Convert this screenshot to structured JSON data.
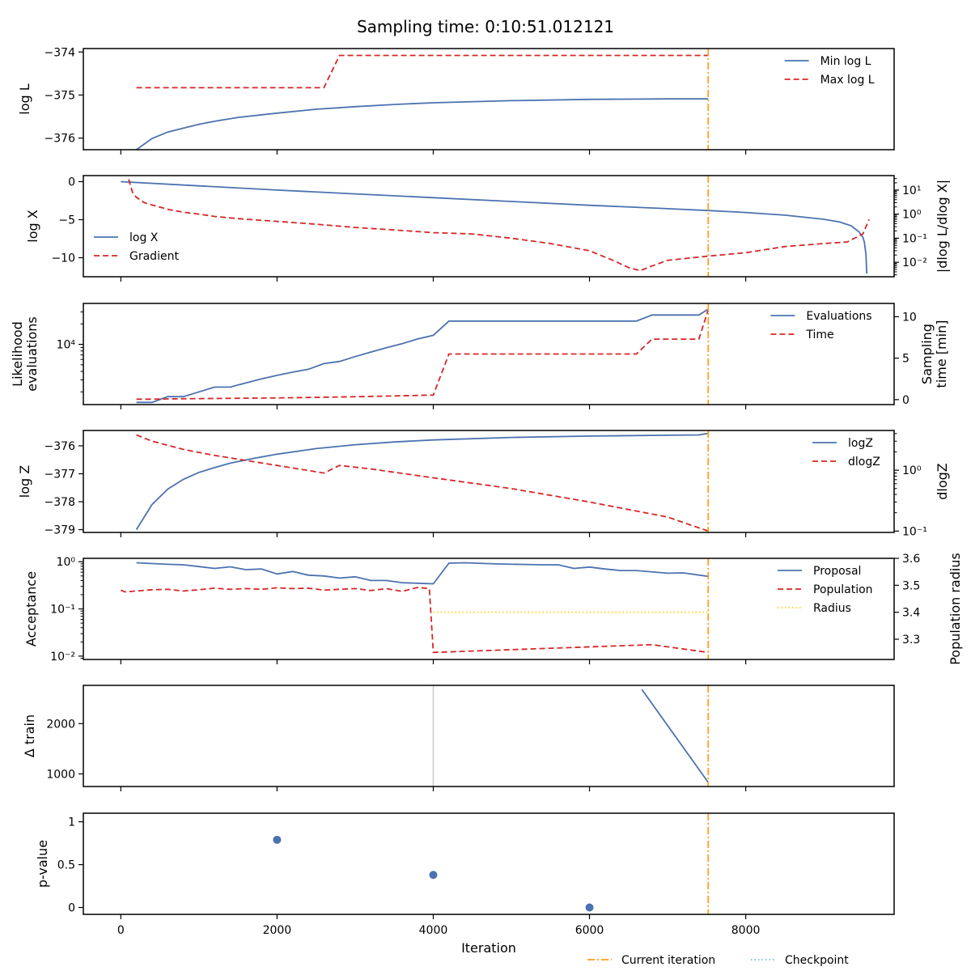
{
  "title": "Sampling time: 0:10:51.012121",
  "xlabel": "Iteration",
  "x_ticks": [
    0,
    2000,
    4000,
    6000,
    8000
  ],
  "xlim": [
    -480,
    9900
  ],
  "current_iteration": 7520,
  "figure_legend": [
    "Current iteration",
    "Checkpoint"
  ],
  "colors": {
    "blue": "#4c72b0",
    "red": "#d62728",
    "orange": "#ff9f1c",
    "yellow": "#ffd21f",
    "checkpoint": "#66c2cc",
    "gray": "#cccccc"
  },
  "chart_data": [
    {
      "type": "line",
      "ylabel": "log L",
      "ylim": [
        -376.27,
        -373.92
      ],
      "yticks": [
        -376,
        -375,
        -374
      ],
      "legend": "top-right",
      "series": [
        {
          "name": "Min log L",
          "color": "blue",
          "style": "solid",
          "x": [
            200,
            400,
            600,
            800,
            1000,
            1200,
            1500,
            2000,
            2500,
            3000,
            3500,
            4000,
            5000,
            6000,
            7000,
            7520
          ],
          "y": [
            -376.27,
            -376.01,
            -375.86,
            -375.77,
            -375.68,
            -375.61,
            -375.52,
            -375.42,
            -375.33,
            -375.27,
            -375.22,
            -375.18,
            -375.13,
            -375.1,
            -375.09,
            -375.09
          ]
        },
        {
          "name": "Max log L",
          "color": "red",
          "style": "dashed",
          "x": [
            200,
            2600,
            2800,
            7520
          ],
          "y": [
            -374.83,
            -374.83,
            -374.08,
            -374.08
          ]
        }
      ]
    },
    {
      "type": "line",
      "ylabel": "log X",
      "ylim": [
        -12.5,
        0.8
      ],
      "yticks": [
        0,
        -5,
        -10
      ],
      "y2label": "|dlog L/dlog X|",
      "y2scale": "log",
      "y2lim": [
        0.0025,
        40
      ],
      "y2ticks": [
        0.01,
        0.1,
        1,
        10
      ],
      "y2ticklabels": [
        "10⁻²",
        "10⁻¹",
        "10⁰",
        "10¹"
      ],
      "legend": "lower-left",
      "series": [
        {
          "name": "log X",
          "color": "blue",
          "style": "solid",
          "axis": "left",
          "x": [
            0,
            1000,
            2000,
            3000,
            4000,
            5000,
            6000,
            7000,
            7520,
            8000,
            8500,
            9000,
            9200,
            9350,
            9450,
            9500,
            9520,
            9540,
            9550
          ],
          "y": [
            0,
            -0.55,
            -1.1,
            -1.6,
            -2.1,
            -2.6,
            -3.1,
            -3.55,
            -3.8,
            -4.05,
            -4.4,
            -4.95,
            -5.3,
            -5.8,
            -6.6,
            -7.3,
            -8.0,
            -9.6,
            -12.1
          ]
        },
        {
          "name": "Gradient",
          "color": "red",
          "style": "dashed",
          "axis": "right",
          "x": [
            100,
            150,
            200,
            300,
            400,
            600,
            800,
            1000,
            1200,
            1500,
            2000,
            2500,
            3000,
            3500,
            4000,
            4500,
            5000,
            5500,
            6000,
            6300,
            6500,
            6650,
            6800,
            7000,
            7520,
            8000,
            8500,
            9000,
            9300,
            9500,
            9580
          ],
          "y": [
            28,
            8,
            5,
            3,
            2.4,
            1.6,
            1.2,
            1.0,
            0.8,
            0.65,
            0.5,
            0.38,
            0.28,
            0.22,
            0.17,
            0.15,
            0.1,
            0.06,
            0.03,
            0.012,
            0.006,
            0.0045,
            0.007,
            0.012,
            0.018,
            0.025,
            0.045,
            0.06,
            0.07,
            0.15,
            0.6
          ]
        }
      ]
    },
    {
      "type": "line",
      "ylabel": "Likelihood evaluations",
      "yscale": "log",
      "ylim": [
        1300,
        40000
      ],
      "yticks": [
        10000
      ],
      "yticklabels": [
        "10⁴"
      ],
      "y2label": "Sampling time [min]",
      "y2lim": [
        -0.6,
        11.6
      ],
      "y2ticks": [
        0,
        5,
        10
      ],
      "legend": "top-right",
      "series": [
        {
          "name": "Evaluations",
          "color": "blue",
          "style": "solid",
          "axis": "left",
          "x": [
            200,
            400,
            600,
            800,
            1000,
            1200,
            1400,
            1600,
            1800,
            2000,
            2200,
            2400,
            2600,
            2800,
            3000,
            3200,
            3400,
            3600,
            3800,
            4000,
            4200,
            4400,
            6600,
            6800,
            7000,
            7400,
            7520
          ],
          "y": [
            1400,
            1400,
            1700,
            1700,
            2000,
            2350,
            2350,
            2700,
            3100,
            3500,
            3900,
            4300,
            5200,
            5600,
            6600,
            7700,
            8900,
            10200,
            12000,
            13600,
            22000,
            22000,
            22000,
            27000,
            27000,
            27000,
            33000
          ]
        },
        {
          "name": "Time",
          "color": "red",
          "style": "dashed",
          "axis": "right",
          "x": [
            200,
            400,
            600,
            1000,
            2000,
            3000,
            3800,
            4000,
            4200,
            5000,
            6000,
            6600,
            6800,
            7400,
            7520
          ],
          "y": [
            0.05,
            0.05,
            0.08,
            0.12,
            0.2,
            0.35,
            0.5,
            0.55,
            5.5,
            5.5,
            5.5,
            5.5,
            7.3,
            7.3,
            10.85
          ]
        }
      ]
    },
    {
      "type": "line",
      "ylabel": "log Z",
      "ylim": [
        -379.1,
        -375.45
      ],
      "yticks": [
        -376,
        -377,
        -378,
        -379
      ],
      "y2label": "dlogZ",
      "y2scale": "log",
      "y2lim": [
        0.095,
        4.5
      ],
      "y2ticks": [
        0.1,
        1
      ],
      "y2ticklabels": [
        "10⁻¹",
        "10⁰"
      ],
      "legend": "top-right",
      "series": [
        {
          "name": "logZ",
          "color": "blue",
          "style": "solid",
          "axis": "left",
          "x": [
            200,
            400,
            600,
            800,
            1000,
            1200,
            1400,
            1700,
            2000,
            2500,
            3000,
            3500,
            4000,
            5000,
            6000,
            7000,
            7400,
            7520
          ],
          "y": [
            -379.0,
            -378.1,
            -377.55,
            -377.2,
            -376.95,
            -376.78,
            -376.62,
            -376.45,
            -376.3,
            -376.1,
            -375.96,
            -375.86,
            -375.79,
            -375.7,
            -375.65,
            -375.62,
            -375.61,
            -375.55
          ]
        },
        {
          "name": "dlogZ",
          "color": "red",
          "style": "dashed",
          "axis": "right",
          "x": [
            200,
            400,
            800,
            1200,
            1600,
            2000,
            2600,
            2800,
            3200,
            4000,
            5000,
            6000,
            7000,
            7520
          ],
          "y": [
            3.8,
            3.0,
            2.2,
            1.75,
            1.45,
            1.2,
            0.9,
            1.2,
            1.05,
            0.75,
            0.5,
            0.3,
            0.17,
            0.1
          ]
        }
      ]
    },
    {
      "type": "line",
      "ylabel": "Acceptance",
      "yscale": "log",
      "ylim": [
        0.0085,
        1.18
      ],
      "yticks": [
        0.01,
        0.1,
        1
      ],
      "yticklabels": [
        "10⁻²",
        "10⁻¹",
        "10⁰"
      ],
      "y2label": "Population radius",
      "y2lim": [
        3.225,
        3.6
      ],
      "y2ticks": [
        3.3,
        3.4,
        3.5,
        3.6
      ],
      "legend": "top-right",
      "series": [
        {
          "name": "Proposal",
          "color": "blue",
          "style": "solid",
          "axis": "left",
          "x": [
            200,
            600,
            800,
            1000,
            1200,
            1400,
            1600,
            1800,
            2000,
            2200,
            2400,
            2600,
            2800,
            3000,
            3200,
            3400,
            3600,
            3800,
            4000,
            4200,
            4400,
            4800,
            5400,
            5600,
            5800,
            6000,
            6200,
            6400,
            6600,
            7000,
            7200,
            7520
          ],
          "y": [
            0.95,
            0.88,
            0.86,
            0.79,
            0.72,
            0.78,
            0.68,
            0.7,
            0.55,
            0.62,
            0.52,
            0.5,
            0.45,
            0.48,
            0.4,
            0.4,
            0.36,
            0.35,
            0.34,
            0.93,
            0.95,
            0.9,
            0.86,
            0.86,
            0.72,
            0.77,
            0.7,
            0.65,
            0.65,
            0.57,
            0.58,
            0.49
          ]
        },
        {
          "name": "Population",
          "color": "red",
          "style": "dashed",
          "axis": "left",
          "x": [
            0,
            50,
            200,
            400,
            600,
            800,
            1000,
            1200,
            1400,
            1600,
            1800,
            2000,
            2200,
            2400,
            2600,
            2800,
            3000,
            3200,
            3400,
            3600,
            3800,
            3950,
            4000,
            6800,
            7520
          ],
          "y": [
            0.25,
            0.23,
            0.24,
            0.255,
            0.26,
            0.24,
            0.255,
            0.275,
            0.26,
            0.27,
            0.26,
            0.28,
            0.27,
            0.275,
            0.25,
            0.26,
            0.27,
            0.245,
            0.27,
            0.235,
            0.285,
            0.27,
            0.012,
            0.0175,
            0.012
          ]
        },
        {
          "name": "Radius",
          "color": "yellow",
          "style": "dotted",
          "axis": "right",
          "x": [
            4000,
            7520
          ],
          "y": [
            3.4,
            3.4
          ]
        }
      ]
    },
    {
      "type": "line",
      "ylabel": "Δ train",
      "ylim": [
        750,
        2760
      ],
      "yticks": [
        1000,
        2000
      ],
      "checkpoint_x": [
        4000
      ],
      "series": [
        {
          "name": "",
          "color": "blue",
          "style": "solid",
          "x": [
            6670,
            7520
          ],
          "y": [
            2680,
            830
          ]
        }
      ]
    },
    {
      "type": "scatter",
      "ylabel": "p-value",
      "ylim": [
        -0.08,
        1.1
      ],
      "yticks": [
        0.0,
        0.5,
        1.0
      ],
      "series": [
        {
          "name": "",
          "color": "blue",
          "x": [
            2000,
            4000,
            6000
          ],
          "y": [
            0.79,
            0.38,
            0.0
          ]
        }
      ]
    }
  ]
}
